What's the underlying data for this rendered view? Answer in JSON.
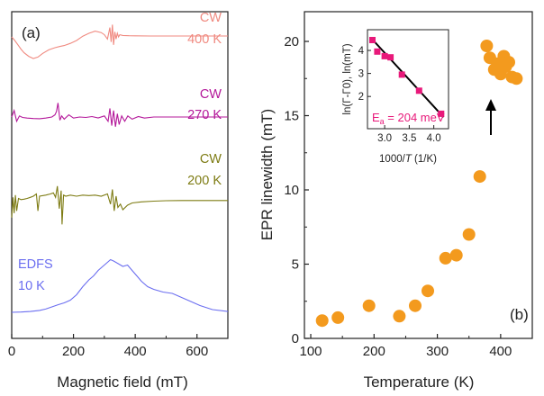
{
  "colors": {
    "cw400": "#f08a80",
    "cw270": "#b4189a",
    "cw200": "#7e7c14",
    "edfs": "#6b6ef0",
    "points": "#f39a1e",
    "inset_points": "#e8197a",
    "fit_line": "#000000",
    "annotation": "#e8197a",
    "axes": "#222222"
  },
  "chart_data": [
    {
      "type": "line",
      "panel_label": "(a)",
      "xlabel": "Magnetic field (mT)",
      "xlim": [
        0,
        700
      ],
      "xticks": [
        0,
        200,
        400,
        600
      ],
      "ylabel": "",
      "series": [
        {
          "name_lines": [
            "CW",
            "400 K"
          ],
          "color_key": "cw400",
          "x": [
            0,
            10,
            20,
            30,
            40,
            55,
            70,
            85,
            100,
            120,
            140,
            155,
            170,
            190,
            210,
            230,
            250,
            270,
            290,
            300,
            310,
            318,
            322,
            326,
            330,
            334,
            338,
            342,
            346,
            350,
            360,
            380,
            400,
            450,
            500,
            550,
            600,
            650,
            700
          ],
          "y": [
            15.5,
            13.0,
            10.0,
            7.0,
            4.5,
            2.0,
            0.5,
            1.5,
            4.0,
            6.5,
            8.0,
            8.8,
            9.5,
            11.0,
            13.0,
            16.0,
            18.0,
            19.5,
            18.5,
            17.0,
            14.0,
            22.0,
            12.0,
            24.0,
            10.0,
            19.0,
            14.0,
            18.0,
            15.5,
            17.0,
            16.5,
            16.3,
            16.2,
            16.1,
            16.1,
            16.1,
            16.1,
            16.1,
            16.1
          ]
        },
        {
          "name_lines": [
            "CW",
            "270 K"
          ],
          "color_key": "cw270",
          "x": [
            0,
            8,
            16,
            25,
            35,
            50,
            70,
            90,
            110,
            130,
            140,
            145,
            150,
            156,
            162,
            170,
            185,
            200,
            220,
            240,
            260,
            280,
            300,
            312,
            318,
            324,
            330,
            336,
            342,
            348,
            356,
            366,
            376,
            390,
            410,
            430,
            460,
            500,
            550,
            600,
            650,
            700
          ],
          "y": [
            8.0,
            11.0,
            6.0,
            8.5,
            7.8,
            7.5,
            7.3,
            7.2,
            7.5,
            8.0,
            9.0,
            10.5,
            14.5,
            6.5,
            8.5,
            7.0,
            9.0,
            7.5,
            8.0,
            7.8,
            8.2,
            7.6,
            8.5,
            6.0,
            12.0,
            4.0,
            11.0,
            3.5,
            9.5,
            4.5,
            8.5,
            6.0,
            8.5,
            7.0,
            8.2,
            7.5,
            8.0,
            8.0,
            8.0,
            8.0,
            8.0,
            8.0
          ]
        },
        {
          "name_lines": [
            "CW",
            "200 K"
          ],
          "color_key": "cw200",
          "x": [
            0,
            4,
            8,
            12,
            16,
            22,
            30,
            40,
            50,
            60,
            70,
            80,
            85,
            90,
            110,
            125,
            135,
            142,
            148,
            154,
            160,
            163,
            168,
            175,
            190,
            210,
            230,
            250,
            270,
            290,
            310,
            320,
            326,
            332,
            338,
            344,
            352,
            360,
            375,
            390,
            420,
            460,
            500,
            550,
            600,
            650,
            700
          ],
          "y": [
            0.0,
            9.0,
            2.0,
            10.0,
            3.0,
            8.5,
            8.0,
            8.2,
            8.5,
            9.0,
            9.5,
            10.5,
            3.0,
            9.5,
            10.0,
            10.5,
            11.0,
            9.0,
            14.0,
            4.0,
            12.0,
            -3.0,
            10.0,
            9.5,
            10.0,
            9.5,
            10.0,
            9.8,
            10.0,
            9.5,
            10.5,
            6.0,
            12.5,
            3.0,
            9.5,
            4.5,
            6.0,
            3.5,
            5.5,
            6.5,
            7.0,
            7.3,
            7.5,
            7.6,
            7.6,
            7.6,
            7.6
          ]
        },
        {
          "name_lines": [
            "EDFS",
            "10 K"
          ],
          "color_key": "edfs",
          "x": [
            0,
            30,
            60,
            90,
            110,
            130,
            150,
            170,
            190,
            210,
            230,
            250,
            265,
            280,
            295,
            310,
            320,
            330,
            345,
            360,
            375,
            390,
            405,
            420,
            440,
            460,
            490,
            520,
            550,
            580,
            610,
            650,
            700
          ],
          "y": [
            0.0,
            0.1,
            0.3,
            0.7,
            1.2,
            2.0,
            2.8,
            3.5,
            4.5,
            6.5,
            9.5,
            12.0,
            13.5,
            15.5,
            17.0,
            18.5,
            19.5,
            19.0,
            18.0,
            17.0,
            17.5,
            15.5,
            13.5,
            11.5,
            9.5,
            8.5,
            7.5,
            7.0,
            5.5,
            4.0,
            2.5,
            1.0,
            0.3
          ]
        }
      ]
    },
    {
      "type": "scatter",
      "panel_label": "(b)",
      "xlabel": "Temperature (K)",
      "ylabel": "EPR linewidth (mT)",
      "xlim": [
        90,
        450
      ],
      "ylim": [
        0,
        22
      ],
      "xticks": [
        100,
        200,
        300,
        400
      ],
      "yticks": [
        0,
        5,
        10,
        15,
        20
      ],
      "x": [
        118,
        143,
        192,
        240,
        265,
        285,
        313,
        330,
        350,
        367,
        378,
        383,
        390,
        395,
        400,
        405,
        408,
        413,
        418,
        425
      ],
      "y": [
        1.2,
        1.4,
        2.2,
        1.5,
        2.2,
        3.2,
        5.4,
        5.6,
        7.0,
        10.9,
        19.7,
        18.9,
        18.1,
        18.5,
        17.8,
        19.0,
        18.3,
        18.6,
        17.6,
        17.5
      ]
    },
    {
      "type": "scatter",
      "role": "inset",
      "xlabel_prefix": "1000/",
      "xlabel_T": "T",
      "xlabel_suffix": " (1/K)",
      "ylabel": "ln(Γ-Γ0), ln(mT)",
      "xlim": [
        2.65,
        4.3
      ],
      "ylim": [
        0.6,
        4.9
      ],
      "xticks": [
        "3.0",
        "3.5",
        "4.0"
      ],
      "xtick_values": [
        3.0,
        3.5,
        4.0
      ],
      "yticks": [
        "2",
        "3",
        "4"
      ],
      "ytick_values": [
        2,
        3,
        4
      ],
      "x": [
        2.75,
        2.85,
        3.0,
        3.12,
        3.35,
        3.7,
        4.15
      ],
      "y": [
        4.45,
        3.95,
        3.75,
        3.7,
        2.95,
        2.25,
        1.25
      ],
      "fit_line": {
        "x": [
          2.72,
          4.2
        ],
        "y": [
          4.55,
          1.1
        ]
      },
      "annotation_prefix": "E",
      "annotation_sub": "a",
      "annotation_value": " = 204 meV"
    }
  ]
}
